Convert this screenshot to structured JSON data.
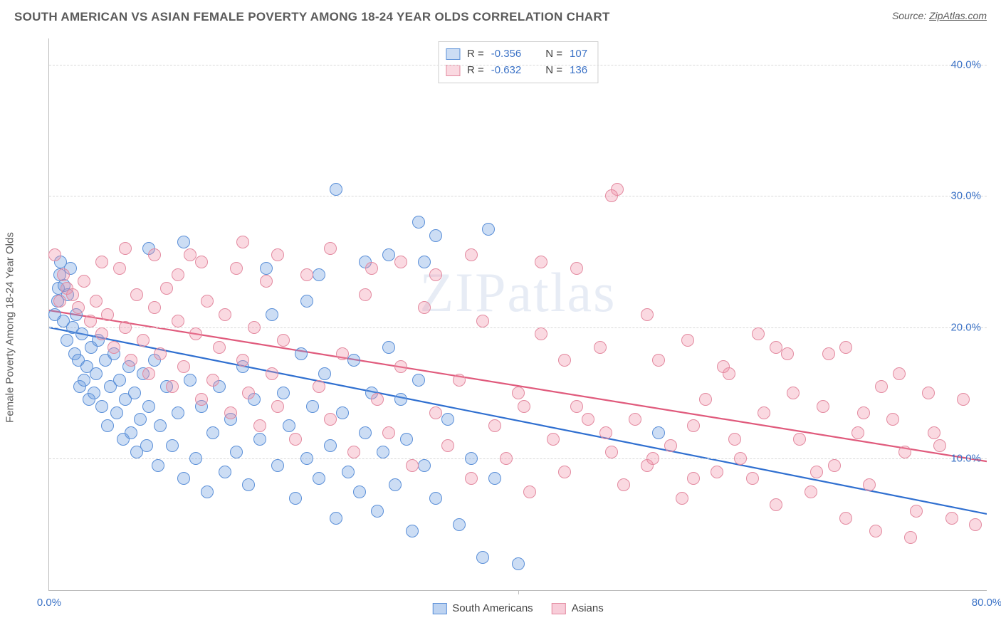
{
  "header": {
    "title": "SOUTH AMERICAN VS ASIAN FEMALE POVERTY AMONG 18-24 YEAR OLDS CORRELATION CHART",
    "source_prefix": "Source: ",
    "source_link": "ZipAtlas.com"
  },
  "watermark": "ZIPatlas",
  "ylabel": "Female Poverty Among 18-24 Year Olds",
  "chart": {
    "type": "scatter",
    "background_color": "#ffffff",
    "grid_color": "#d9d9d9",
    "border_color": "#bcbcbc",
    "xlim": [
      0,
      80
    ],
    "ylim": [
      0,
      42
    ],
    "x_ticks": [
      {
        "v": 0,
        "label": "0.0%"
      },
      {
        "v": 80,
        "label": "80.0%"
      }
    ],
    "x_minor_tick": 40,
    "y_ticks": [
      {
        "v": 10,
        "label": "10.0%"
      },
      {
        "v": 20,
        "label": "20.0%"
      },
      {
        "v": 30,
        "label": "30.0%"
      },
      {
        "v": 40,
        "label": "40.0%"
      }
    ],
    "tick_color": "#3b72c6",
    "tick_fontsize": 15,
    "point_radius": 9,
    "point_border_width": 1.5,
    "series": [
      {
        "name": "South Americans",
        "fill_color": "rgba(109,158,224,0.35)",
        "border_color": "#5a8fd8",
        "line_color": "#2f6fd0",
        "regression": {
          "y_at_x0": 20.0,
          "y_at_xmax": 5.8
        },
        "stats": {
          "R": "-0.356",
          "N": "107"
        },
        "points": [
          [
            0.5,
            21.0
          ],
          [
            0.7,
            22.0
          ],
          [
            0.8,
            23.0
          ],
          [
            0.9,
            24.0
          ],
          [
            1.0,
            25.0
          ],
          [
            1.2,
            20.5
          ],
          [
            1.3,
            23.2
          ],
          [
            1.5,
            19.0
          ],
          [
            1.6,
            22.5
          ],
          [
            1.8,
            24.5
          ],
          [
            2.0,
            20.0
          ],
          [
            2.2,
            18.0
          ],
          [
            2.3,
            21.0
          ],
          [
            2.5,
            17.5
          ],
          [
            2.6,
            15.5
          ],
          [
            2.8,
            19.5
          ],
          [
            3.0,
            16.0
          ],
          [
            3.2,
            17.0
          ],
          [
            3.4,
            14.5
          ],
          [
            3.6,
            18.5
          ],
          [
            3.8,
            15.0
          ],
          [
            4.0,
            16.5
          ],
          [
            4.2,
            19.0
          ],
          [
            4.5,
            14.0
          ],
          [
            4.8,
            17.5
          ],
          [
            5.0,
            12.5
          ],
          [
            5.2,
            15.5
          ],
          [
            5.5,
            18.0
          ],
          [
            5.8,
            13.5
          ],
          [
            6.0,
            16.0
          ],
          [
            6.3,
            11.5
          ],
          [
            6.5,
            14.5
          ],
          [
            6.8,
            17.0
          ],
          [
            7.0,
            12.0
          ],
          [
            7.3,
            15.0
          ],
          [
            7.5,
            10.5
          ],
          [
            7.8,
            13.0
          ],
          [
            8.0,
            16.5
          ],
          [
            8.3,
            11.0
          ],
          [
            8.5,
            14.0
          ],
          [
            9.0,
            17.5
          ],
          [
            9.3,
            9.5
          ],
          [
            9.5,
            12.5
          ],
          [
            10.0,
            15.5
          ],
          [
            10.5,
            11.0
          ],
          [
            11.0,
            13.5
          ],
          [
            11.5,
            8.5
          ],
          [
            12.0,
            16.0
          ],
          [
            12.5,
            10.0
          ],
          [
            13.0,
            14.0
          ],
          [
            13.5,
            7.5
          ],
          [
            14.0,
            12.0
          ],
          [
            14.5,
            15.5
          ],
          [
            15.0,
            9.0
          ],
          [
            15.5,
            13.0
          ],
          [
            16.0,
            10.5
          ],
          [
            16.5,
            17.0
          ],
          [
            17.0,
            8.0
          ],
          [
            17.5,
            14.5
          ],
          [
            18.0,
            11.5
          ],
          [
            19.0,
            21.0
          ],
          [
            19.5,
            9.5
          ],
          [
            20.0,
            15.0
          ],
          [
            20.5,
            12.5
          ],
          [
            21.0,
            7.0
          ],
          [
            21.5,
            18.0
          ],
          [
            22.0,
            10.0
          ],
          [
            22.5,
            14.0
          ],
          [
            23.0,
            8.5
          ],
          [
            23.5,
            16.5
          ],
          [
            24.0,
            11.0
          ],
          [
            24.5,
            5.5
          ],
          [
            25.0,
            13.5
          ],
          [
            25.5,
            9.0
          ],
          [
            26.0,
            17.5
          ],
          [
            26.5,
            7.5
          ],
          [
            27.0,
            12.0
          ],
          [
            27.5,
            15.0
          ],
          [
            28.0,
            6.0
          ],
          [
            28.5,
            10.5
          ],
          [
            29.0,
            18.5
          ],
          [
            29.5,
            8.0
          ],
          [
            30.0,
            14.5
          ],
          [
            30.5,
            11.5
          ],
          [
            31.0,
            4.5
          ],
          [
            31.5,
            16.0
          ],
          [
            32.0,
            9.5
          ],
          [
            33.0,
            7.0
          ],
          [
            34.0,
            13.0
          ],
          [
            35.0,
            5.0
          ],
          [
            36.0,
            10.0
          ],
          [
            37.0,
            2.5
          ],
          [
            38.0,
            8.5
          ],
          [
            24.5,
            30.5
          ],
          [
            27.0,
            25.0
          ],
          [
            29.0,
            25.5
          ],
          [
            31.5,
            28.0
          ],
          [
            33.0,
            27.0
          ],
          [
            32.0,
            25.0
          ],
          [
            37.5,
            27.5
          ],
          [
            23.0,
            24.0
          ],
          [
            22.0,
            22.0
          ],
          [
            18.5,
            24.5
          ],
          [
            8.5,
            26.0
          ],
          [
            11.5,
            26.5
          ],
          [
            40.0,
            2.0
          ],
          [
            52.0,
            12.0
          ]
        ]
      },
      {
        "name": "Asians",
        "fill_color": "rgba(240,145,170,0.35)",
        "border_color": "#e38aa0",
        "line_color": "#e05a7c",
        "regression": {
          "y_at_x0": 21.3,
          "y_at_xmax": 9.8
        },
        "stats": {
          "R": "-0.632",
          "N": "136"
        },
        "points": [
          [
            0.5,
            25.5
          ],
          [
            0.9,
            22.0
          ],
          [
            1.2,
            24.0
          ],
          [
            1.5,
            23.0
          ],
          [
            2.0,
            22.5
          ],
          [
            2.5,
            21.5
          ],
          [
            3.0,
            23.5
          ],
          [
            3.5,
            20.5
          ],
          [
            4.0,
            22.0
          ],
          [
            4.5,
            19.5
          ],
          [
            5.0,
            21.0
          ],
          [
            5.5,
            18.5
          ],
          [
            6.0,
            24.5
          ],
          [
            6.5,
            20.0
          ],
          [
            7.0,
            17.5
          ],
          [
            7.5,
            22.5
          ],
          [
            8.0,
            19.0
          ],
          [
            8.5,
            16.5
          ],
          [
            9.0,
            21.5
          ],
          [
            9.5,
            18.0
          ],
          [
            10.0,
            23.0
          ],
          [
            10.5,
            15.5
          ],
          [
            11.0,
            20.5
          ],
          [
            11.5,
            17.0
          ],
          [
            12.0,
            25.5
          ],
          [
            12.5,
            19.5
          ],
          [
            13.0,
            14.5
          ],
          [
            13.5,
            22.0
          ],
          [
            14.0,
            16.0
          ],
          [
            14.5,
            18.5
          ],
          [
            15.0,
            21.0
          ],
          [
            15.5,
            13.5
          ],
          [
            16.0,
            24.5
          ],
          [
            16.5,
            17.5
          ],
          [
            17.0,
            15.0
          ],
          [
            17.5,
            20.0
          ],
          [
            18.0,
            12.5
          ],
          [
            18.5,
            23.5
          ],
          [
            19.0,
            16.5
          ],
          [
            19.5,
            14.0
          ],
          [
            20.0,
            19.0
          ],
          [
            21.0,
            11.5
          ],
          [
            22.0,
            24.0
          ],
          [
            23.0,
            15.5
          ],
          [
            24.0,
            13.0
          ],
          [
            25.0,
            18.0
          ],
          [
            26.0,
            10.5
          ],
          [
            27.0,
            22.5
          ],
          [
            28.0,
            14.5
          ],
          [
            29.0,
            12.0
          ],
          [
            30.0,
            17.0
          ],
          [
            31.0,
            9.5
          ],
          [
            32.0,
            21.5
          ],
          [
            33.0,
            13.5
          ],
          [
            34.0,
            11.0
          ],
          [
            35.0,
            16.0
          ],
          [
            36.0,
            8.5
          ],
          [
            37.0,
            20.5
          ],
          [
            38.0,
            12.5
          ],
          [
            39.0,
            10.0
          ],
          [
            40.0,
            15.0
          ],
          [
            41.0,
            7.5
          ],
          [
            42.0,
            19.5
          ],
          [
            43.0,
            11.5
          ],
          [
            44.0,
            9.0
          ],
          [
            45.0,
            14.0
          ],
          [
            46.0,
            13.0
          ],
          [
            47.0,
            18.5
          ],
          [
            48.0,
            10.5
          ],
          [
            49.0,
            8.0
          ],
          [
            50.0,
            13.0
          ],
          [
            51.0,
            9.5
          ],
          [
            52.0,
            17.5
          ],
          [
            53.0,
            11.0
          ],
          [
            54.0,
            7.0
          ],
          [
            55.0,
            12.5
          ],
          [
            56.0,
            14.5
          ],
          [
            57.0,
            9.0
          ],
          [
            58.0,
            16.5
          ],
          [
            59.0,
            10.0
          ],
          [
            60.0,
            8.5
          ],
          [
            61.0,
            13.5
          ],
          [
            62.0,
            18.5
          ],
          [
            63.0,
            18.0
          ],
          [
            64.0,
            11.5
          ],
          [
            65.0,
            7.5
          ],
          [
            66.0,
            14.0
          ],
          [
            67.0,
            9.5
          ],
          [
            68.0,
            18.5
          ],
          [
            69.0,
            12.0
          ],
          [
            70.0,
            8.0
          ],
          [
            71.0,
            15.5
          ],
          [
            72.0,
            13.0
          ],
          [
            73.0,
            10.5
          ],
          [
            74.0,
            6.0
          ],
          [
            75.0,
            15.0
          ],
          [
            76.0,
            11.0
          ],
          [
            77.0,
            5.5
          ],
          [
            78.0,
            14.5
          ],
          [
            79.0,
            5.0
          ],
          [
            48.5,
            30.5
          ],
          [
            48.0,
            30.0
          ],
          [
            42.0,
            25.0
          ],
          [
            45.0,
            24.5
          ],
          [
            36.0,
            25.5
          ],
          [
            33.0,
            24.0
          ],
          [
            30.0,
            25.0
          ],
          [
            27.5,
            24.5
          ],
          [
            24.0,
            26.0
          ],
          [
            19.5,
            25.5
          ],
          [
            16.5,
            26.5
          ],
          [
            13.0,
            25.0
          ],
          [
            11.0,
            24.0
          ],
          [
            9.0,
            25.5
          ],
          [
            6.5,
            26.0
          ],
          [
            4.5,
            25.0
          ],
          [
            51.0,
            21.0
          ],
          [
            54.5,
            19.0
          ],
          [
            57.5,
            17.0
          ],
          [
            60.5,
            19.5
          ],
          [
            63.5,
            15.0
          ],
          [
            66.5,
            18.0
          ],
          [
            69.5,
            13.5
          ],
          [
            72.5,
            16.5
          ],
          [
            75.5,
            12.0
          ],
          [
            70.5,
            4.5
          ],
          [
            73.5,
            4.0
          ],
          [
            68.0,
            5.5
          ],
          [
            65.5,
            9.0
          ],
          [
            62.0,
            6.5
          ],
          [
            58.5,
            11.5
          ],
          [
            55.0,
            8.5
          ],
          [
            51.5,
            10.0
          ],
          [
            47.5,
            12.0
          ],
          [
            44.0,
            17.5
          ],
          [
            40.5,
            14.0
          ]
        ]
      }
    ]
  },
  "legend": {
    "items": [
      {
        "label": "South Americans",
        "fill": "rgba(109,158,224,0.45)",
        "border": "#5a8fd8"
      },
      {
        "label": "Asians",
        "fill": "rgba(240,145,170,0.45)",
        "border": "#e38aa0"
      }
    ]
  }
}
